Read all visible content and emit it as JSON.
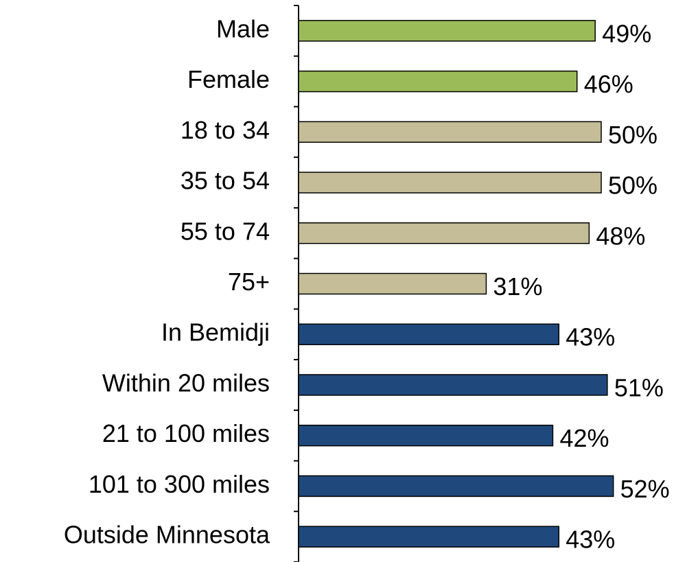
{
  "chart_data": {
    "type": "bar",
    "orientation": "horizontal",
    "categories": [
      "Male",
      "Female",
      "18 to 34",
      "35 to 54",
      "55 to 74",
      "75+",
      "In Bemidji",
      "Within 20 miles",
      "21 to 100 miles",
      "101 to 300 miles",
      "Outside Minnesota"
    ],
    "values": [
      49,
      46,
      50,
      50,
      48,
      31,
      43,
      51,
      42,
      52,
      43
    ],
    "value_labels": [
      "49%",
      "46%",
      "50%",
      "50%",
      "48%",
      "31%",
      "43%",
      "51%",
      "42%",
      "52%",
      "43%"
    ],
    "colors": [
      "#9bbb59",
      "#9bbb59",
      "#c4bd97",
      "#c4bd97",
      "#c4bd97",
      "#c4bd97",
      "#1f497d",
      "#1f497d",
      "#1f497d",
      "#1f497d",
      "#1f497d"
    ]
  }
}
